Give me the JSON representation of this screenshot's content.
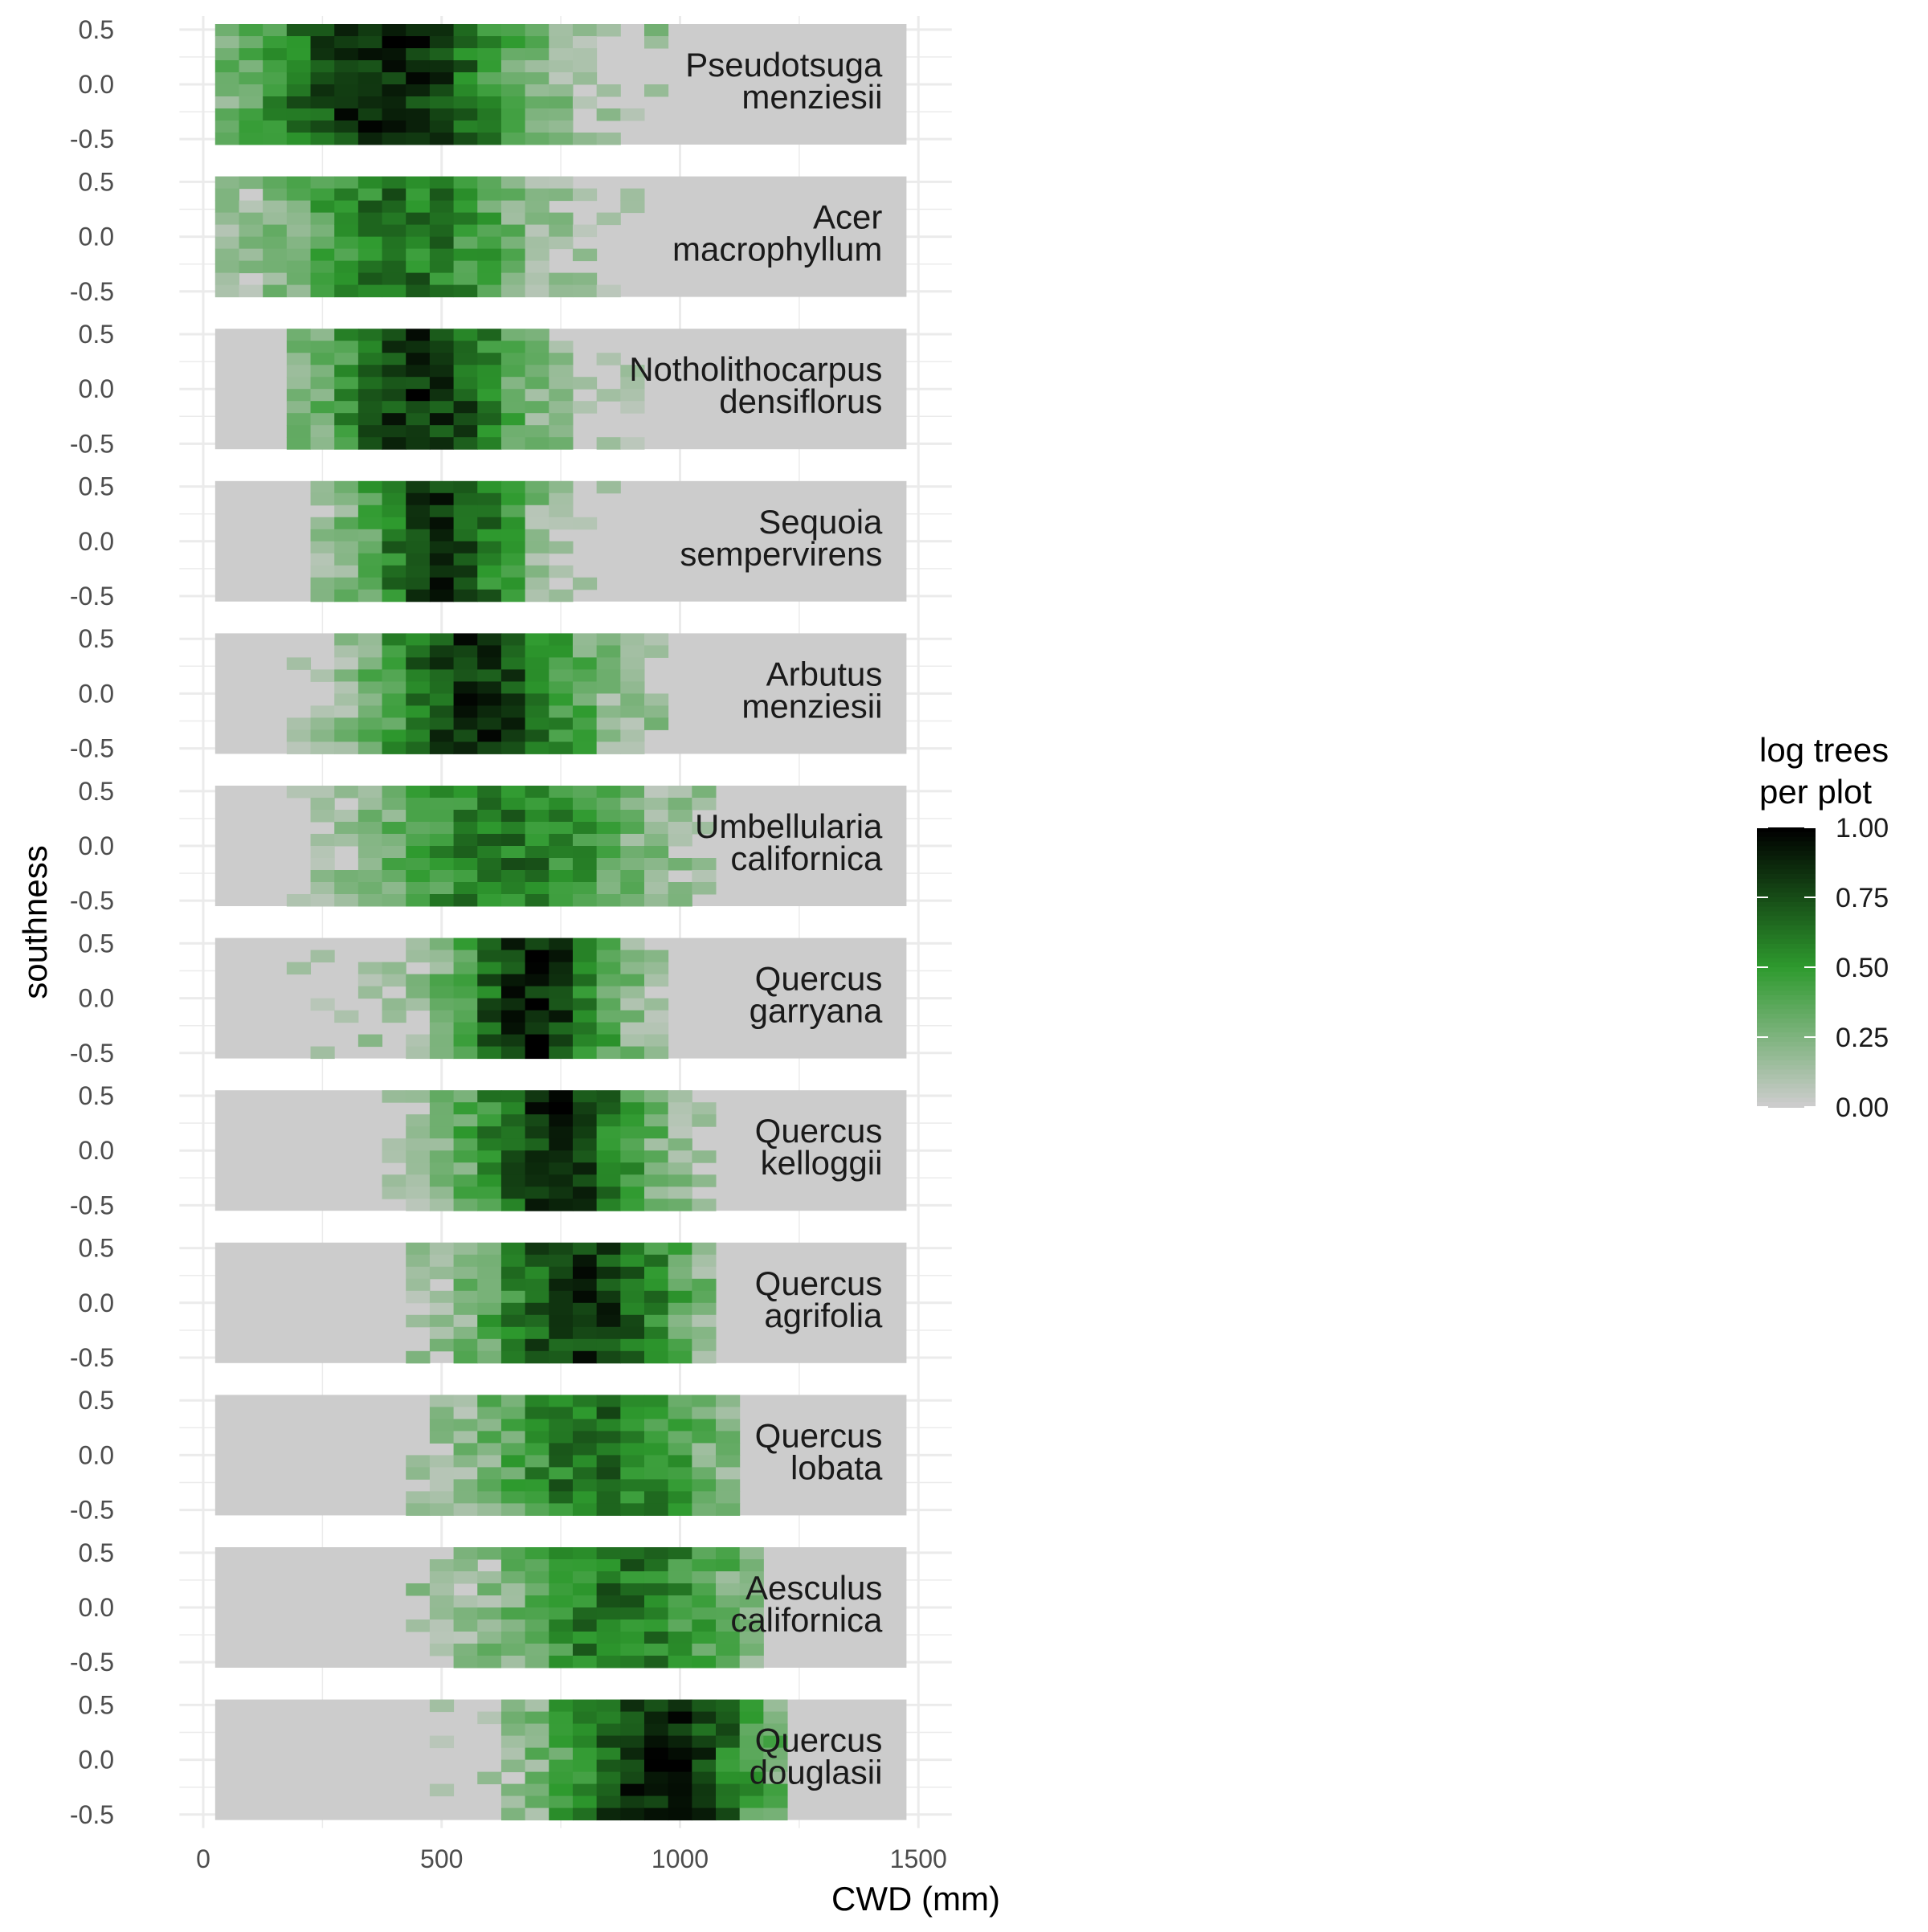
{
  "chart_data": {
    "type": "heatmap",
    "title": "",
    "xlabel": "CWD (mm)",
    "ylabel": "southness",
    "xlim": [
      -50,
      1570
    ],
    "x_ticks": [
      0,
      500,
      1000,
      1500
    ],
    "x_tick_labels": [
      "0",
      "500",
      "1000",
      "1500"
    ],
    "y_ticks": [
      0.5,
      0.0,
      -0.5
    ],
    "y_tick_labels": [
      "0.5",
      "0.0",
      "-0.5"
    ],
    "ylim": [
      -0.55,
      0.55
    ],
    "grid": true,
    "panel_background": "#cccccc",
    "panel_x_range": [
      25,
      1475
    ],
    "bin_width_x": 50,
    "legend": {
      "title_lines": [
        "log trees",
        "per plot"
      ],
      "position": "right",
      "ticks": [
        1.0,
        0.75,
        0.5,
        0.25,
        0.0
      ],
      "tick_labels": [
        "1.00",
        "0.75",
        "0.50",
        "0.25",
        "0.00"
      ],
      "colors": {
        "low": "#cccccc",
        "mid": "#2e9a2e",
        "high": "#000000"
      }
    },
    "panels": [
      {
        "species": [
          "Pseudotsuga",
          "menziesii"
        ],
        "x_range": [
          25,
          975
        ],
        "center": 380,
        "spread": 330,
        "peak": 0.9
      },
      {
        "species": [
          "Acer",
          "macrophyllum"
        ],
        "x_range": [
          25,
          925
        ],
        "center": 420,
        "spread": 300,
        "peak": 0.62
      },
      {
        "species": [
          "Notholithocarpus",
          "densiflorus"
        ],
        "x_range": [
          175,
          925
        ],
        "center": 460,
        "spread": 240,
        "peak": 0.86
      },
      {
        "species": [
          "Sequoia",
          "sempervirens"
        ],
        "x_range": [
          225,
          875
        ],
        "center": 500,
        "spread": 200,
        "peak": 0.82
      },
      {
        "species": [
          "Arbutus",
          "menziesii"
        ],
        "x_range": [
          175,
          975
        ],
        "center": 580,
        "spread": 260,
        "peak": 0.85
      },
      {
        "species": [
          "Umbellularia",
          "californica"
        ],
        "x_range": [
          175,
          1075
        ],
        "center": 640,
        "spread": 320,
        "peak": 0.62
      },
      {
        "species": [
          "Quercus",
          "garryana"
        ],
        "x_range": [
          175,
          975
        ],
        "center": 690,
        "spread": 200,
        "peak": 0.88
      },
      {
        "species": [
          "Quercus",
          "kelloggii"
        ],
        "x_range": [
          375,
          1075
        ],
        "center": 740,
        "spread": 230,
        "peak": 0.85
      },
      {
        "species": [
          "Quercus",
          "agrifolia"
        ],
        "x_range": [
          425,
          1075
        ],
        "center": 800,
        "spread": 260,
        "peak": 0.82
      },
      {
        "species": [
          "Quercus",
          "lobata"
        ],
        "x_range": [
          425,
          1125
        ],
        "center": 830,
        "spread": 280,
        "peak": 0.66
      },
      {
        "species": [
          "Aesculus",
          "californica"
        ],
        "x_range": [
          425,
          1175
        ],
        "center": 880,
        "spread": 300,
        "peak": 0.62
      },
      {
        "species": [
          "Quercus",
          "douglasii"
        ],
        "x_range": [
          475,
          1225
        ],
        "center": 960,
        "spread": 260,
        "peak": 0.9
      }
    ]
  }
}
